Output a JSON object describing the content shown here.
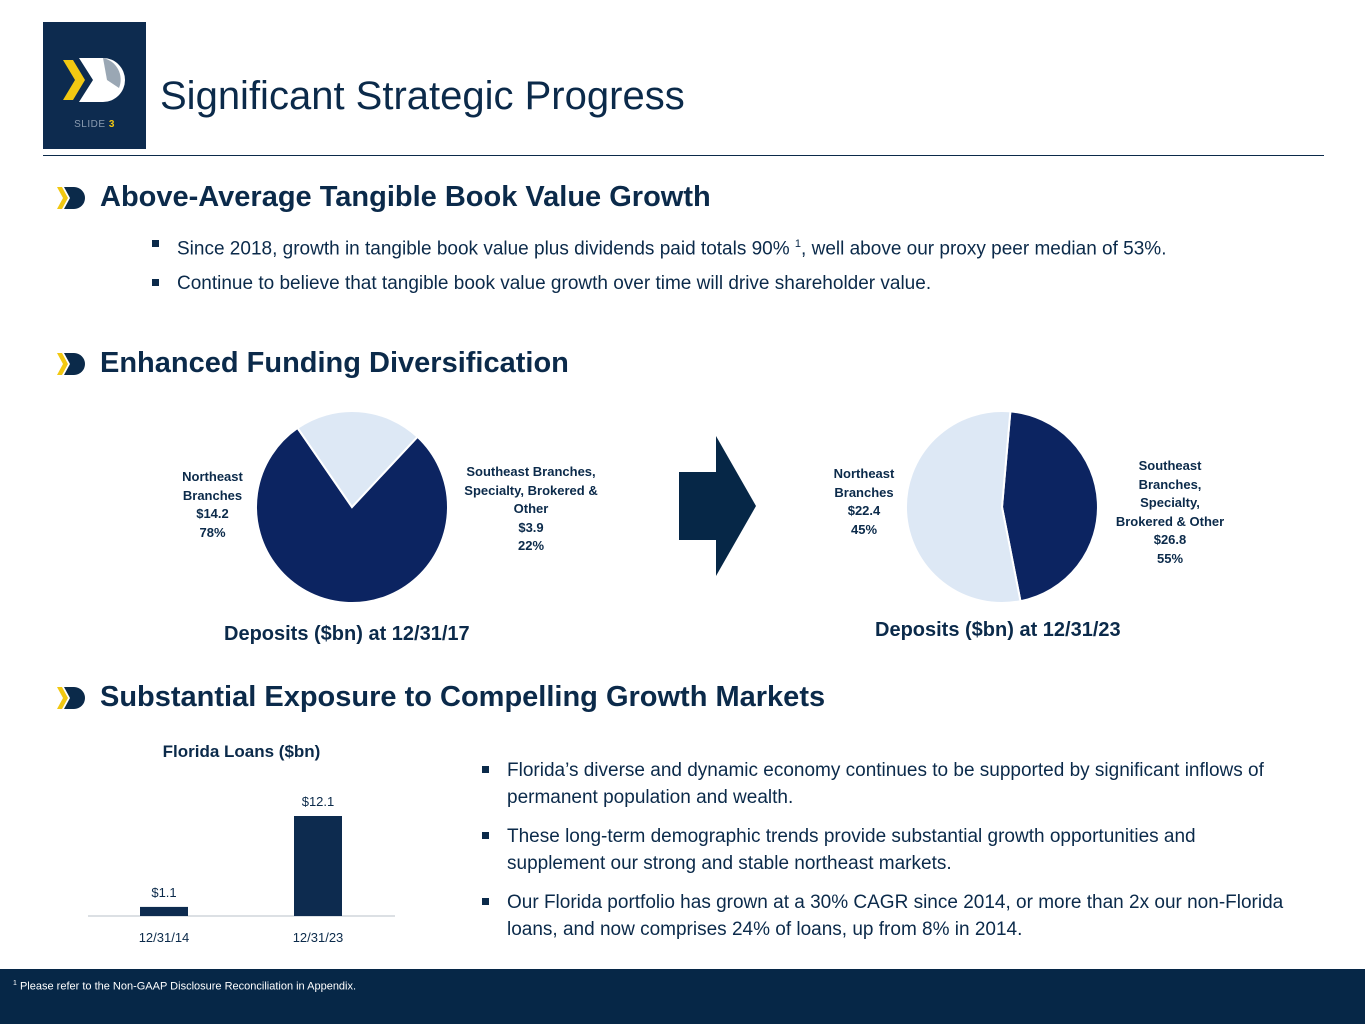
{
  "header": {
    "slide_prefix": "SLIDE",
    "slide_number": "3",
    "title": "Significant Strategic Progress"
  },
  "colors": {
    "navy": "#0d2b4f",
    "pie_dark": "#0c2461",
    "pie_light": "#dde8f5",
    "accent_yellow": "#f2c812",
    "footer": "#062747"
  },
  "section1": {
    "icon": "chevron-logo-icon",
    "title": "Above-Average Tangible Book Value Growth",
    "bullet1_pre": "Since 2018, growth in tangible book value plus dividends paid totals 90%",
    "bullet1_sup": "1",
    "bullet1_post": ", well above our proxy peer median of 53%.",
    "bullet2": "Continue to believe that tangible book value growth over time will drive shareholder value."
  },
  "section2": {
    "icon": "chevron-logo-icon",
    "title": "Enhanced Funding Diversification",
    "arrow_icon": "right-arrow-icon"
  },
  "section3": {
    "icon": "chevron-logo-icon",
    "title": "Substantial Exposure to Compelling Growth Markets",
    "bullets": [
      "Florida’s diverse and dynamic economy continues to be supported by significant inflows of permanent population and wealth.",
      "These long-term demographic trends provide substantial growth opportunities and supplement our strong and stable northeast markets.",
      "Our Florida portfolio has grown at a 30% CAGR since 2014, or more than 2x our non-Florida loans, and now comprises 24% of loans, up from 8% in 2014."
    ]
  },
  "chart_data": [
    {
      "type": "pie",
      "title": "Deposits ($bn) at 12/31/17",
      "slices": [
        {
          "label_lines": [
            "Northeast",
            "Branches"
          ],
          "value": 14.2,
          "value_label": "$14.2",
          "percent": 78,
          "percent_label": "78%"
        },
        {
          "label_lines": [
            "Southeast Branches,",
            "Specialty, Brokered &",
            "Other"
          ],
          "value": 3.9,
          "value_label": "$3.9",
          "percent": 22,
          "percent_label": "22%"
        }
      ]
    },
    {
      "type": "pie",
      "title": "Deposits ($bn) at 12/31/23",
      "slices": [
        {
          "label_lines": [
            "Northeast",
            "Branches"
          ],
          "value": 22.4,
          "value_label": "$22.4",
          "percent": 45,
          "percent_label": "45%"
        },
        {
          "label_lines": [
            "Southeast",
            "Branches,",
            "Specialty,",
            "Brokered & Other"
          ],
          "value": 26.8,
          "value_label": "$26.8",
          "percent": 55,
          "percent_label": "55%"
        }
      ]
    },
    {
      "type": "bar",
      "title": "Florida Loans ($bn)",
      "categories": [
        "12/31/14",
        "12/31/23"
      ],
      "values": [
        1.1,
        12.1
      ],
      "value_labels": [
        "$1.1",
        "$12.1"
      ],
      "ylim": [
        0,
        12.1
      ]
    }
  ],
  "footer": {
    "sup": "1",
    "note": "Please refer to the Non-GAAP Disclosure Reconciliation in Appendix."
  }
}
